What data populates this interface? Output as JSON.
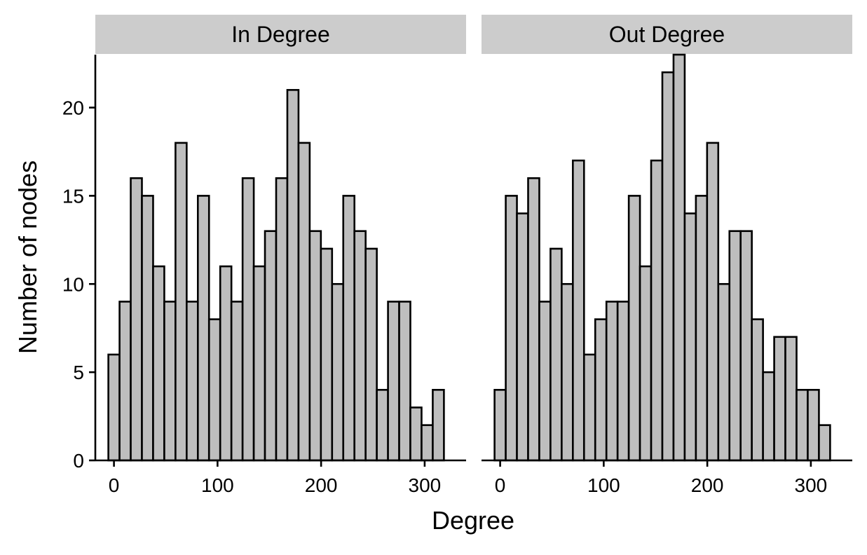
{
  "chart_data": {
    "type": "bar",
    "xlabel": "Degree",
    "ylabel": "Number of nodes",
    "ylim": [
      0,
      23
    ],
    "yticks": [
      0,
      5,
      10,
      15,
      20
    ],
    "xticks": [
      0,
      100,
      200,
      300
    ],
    "xlim": [
      -18,
      340
    ],
    "bin_width": 10.8,
    "grid": false,
    "legend": "none",
    "colors": {
      "fill": "#bebebe",
      "stroke": "#000000",
      "strip": "#cccccc"
    },
    "panels": [
      {
        "title": "In Degree",
        "bin_start": -5.4,
        "values": [
          6,
          9,
          16,
          15,
          11,
          9,
          18,
          9,
          15,
          8,
          11,
          9,
          16,
          11,
          13,
          16,
          21,
          18,
          13,
          12,
          10,
          15,
          13,
          12,
          4,
          9,
          9,
          3,
          2,
          4
        ]
      },
      {
        "title": "Out Degree",
        "bin_start": -5.4,
        "values": [
          4,
          15,
          14,
          16,
          9,
          12,
          10,
          17,
          6,
          8,
          9,
          9,
          15,
          11,
          17,
          22,
          23,
          14,
          15,
          18,
          10,
          13,
          13,
          8,
          5,
          7,
          7,
          4,
          4,
          2
        ]
      }
    ]
  }
}
